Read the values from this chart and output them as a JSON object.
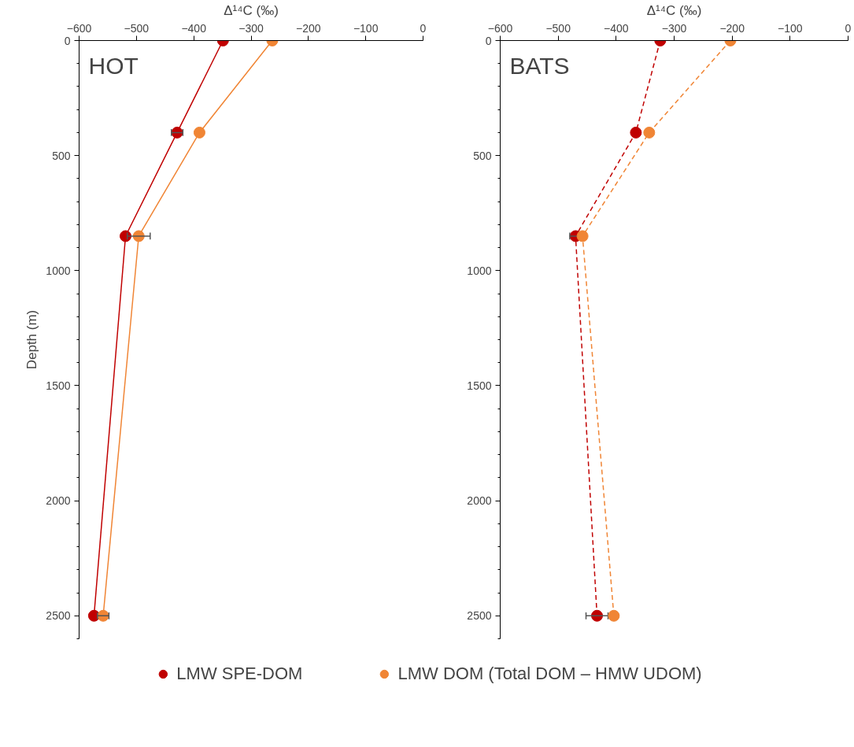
{
  "chart_data": [
    {
      "type": "line",
      "xlabel": "Δ¹⁴C (‰)",
      "ylabel": "Depth (m)",
      "annotations": [
        "HOT"
      ],
      "xlim": [
        -600,
        0
      ],
      "xticks": [
        -600,
        -500,
        -400,
        -300,
        -200,
        -100,
        0
      ],
      "ylim": [
        2600,
        0
      ],
      "yticks": [
        0,
        500,
        1000,
        1500,
        2000,
        2500
      ],
      "grid": false,
      "marker": "circle",
      "line_style": "solid",
      "legend": "bottom",
      "series": [
        {
          "name": "LMW SPE-DOM",
          "color": "#c00000",
          "x": [
            -349,
            -429,
            -519,
            -574
          ],
          "values": [
            0,
            400,
            850,
            2500
          ],
          "xerrors": [
            null,
            10,
            null,
            null
          ]
        },
        {
          "name": "LMW DOM (Total DOM – HMW UDOM)",
          "color": "#f08535",
          "x": [
            -263,
            -390,
            -496,
            -558
          ],
          "values": [
            0,
            400,
            850,
            2500
          ],
          "xerrors": [
            null,
            null,
            20,
            10
          ]
        }
      ]
    },
    {
      "type": "line",
      "xlabel": "Δ¹⁴C (‰)",
      "annotations": [
        "BATS"
      ],
      "xlim": [
        -600,
        0
      ],
      "xticks": [
        -600,
        -500,
        -400,
        -300,
        -200,
        -100,
        0
      ],
      "ylim": [
        2600,
        0
      ],
      "yticks": [
        0,
        500,
        1000,
        1500,
        2000,
        2500
      ],
      "grid": false,
      "marker": "circle",
      "line_style": "dashed",
      "series": [
        {
          "color": "#c00000",
          "x": [
            -324,
            -366,
            -470,
            -433
          ],
          "values": [
            0,
            400,
            850,
            2500
          ],
          "xerrors": [
            null,
            null,
            10,
            19
          ]
        },
        {
          "color": "#f08535",
          "x": [
            -203,
            -343,
            -458,
            -404
          ],
          "values": [
            0,
            400,
            850,
            2500
          ],
          "xerrors": [
            null,
            null,
            null,
            null
          ]
        }
      ]
    }
  ]
}
